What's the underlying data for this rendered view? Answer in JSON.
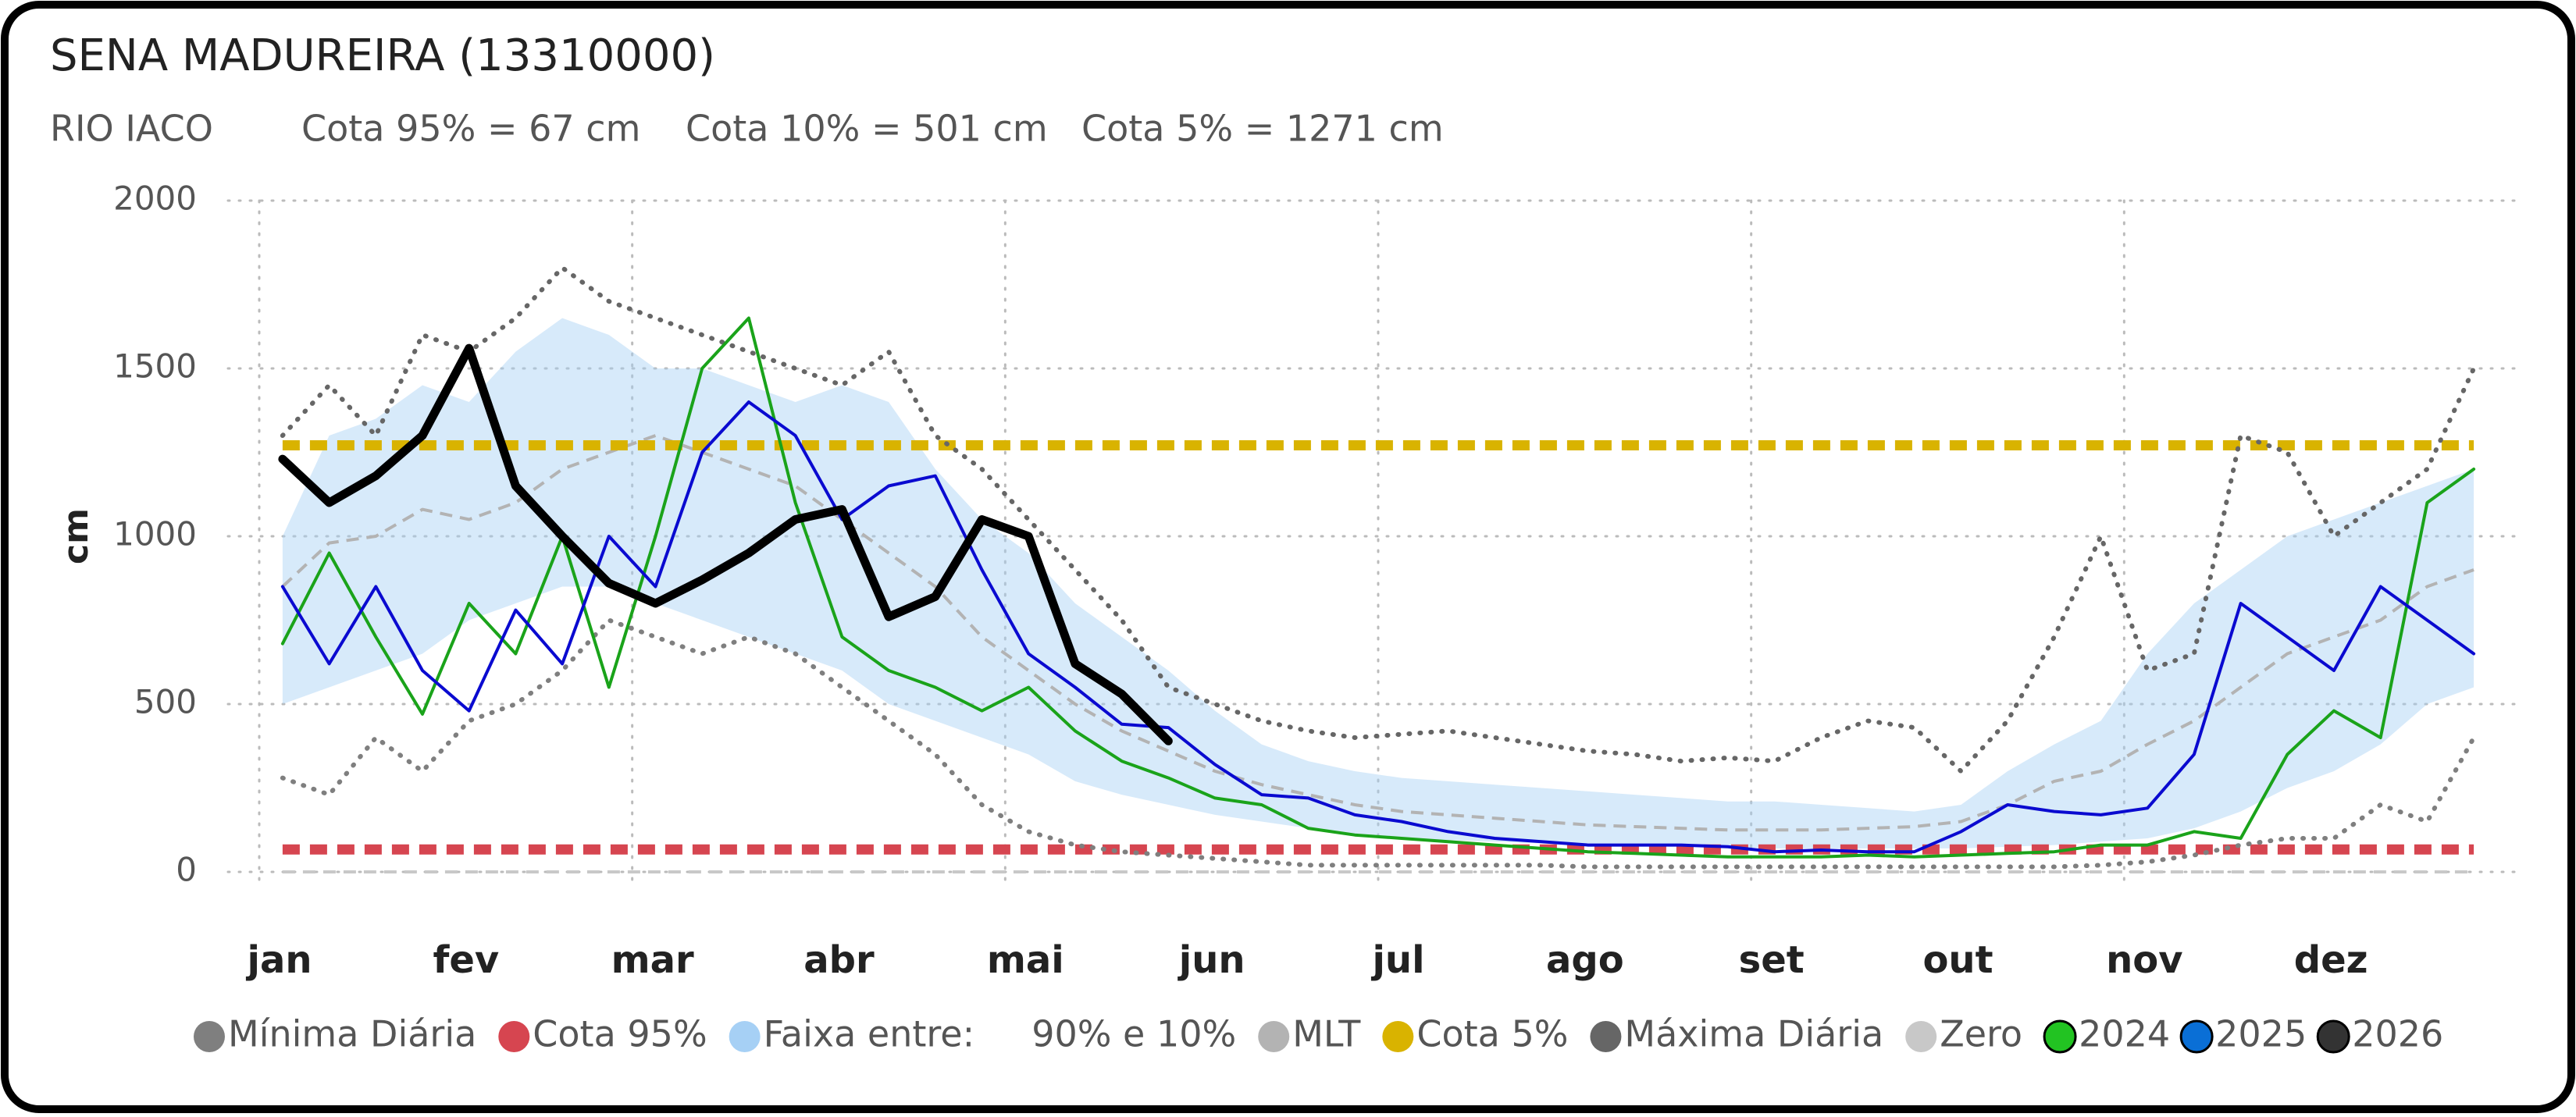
{
  "chart_data": {
    "type": "line",
    "title": "SENA MADUREIRA (13310000)",
    "subtitle": [
      "RIO IACO",
      "Cota 95% = 67 cm",
      "Cota 10% = 501 cm",
      "Cota 5% = 1271 cm"
    ],
    "y_label": "cm",
    "ylim": [
      0,
      2000
    ],
    "yticks": [
      0,
      500,
      1000,
      1500,
      2000
    ],
    "grid": true,
    "categories": [
      "jan",
      null,
      null,
      null,
      "fev",
      null,
      null,
      null,
      "mar",
      null,
      null,
      null,
      "abr",
      null,
      null,
      null,
      "mai",
      null,
      null,
      null,
      "jun",
      null,
      null,
      null,
      "jul",
      null,
      null,
      null,
      "ago",
      null,
      null,
      null,
      "set",
      null,
      null,
      null,
      "out",
      null,
      null,
      null,
      "nov",
      null,
      null,
      null,
      "dez",
      null,
      null,
      null
    ],
    "series": [
      {
        "name": "Mínima Diária",
        "color": "#7f7f7f",
        "line_style": "dotted",
        "values": [
          280,
          230,
          400,
          300,
          450,
          500,
          600,
          750,
          700,
          650,
          700,
          650,
          550,
          450,
          350,
          200,
          120,
          80,
          60,
          50,
          40,
          30,
          20,
          20,
          20,
          20,
          20,
          20,
          15,
          15,
          15,
          15,
          15,
          15,
          15,
          15,
          15,
          15,
          15,
          20,
          30,
          50,
          80,
          100,
          100,
          200,
          150,
          400
        ]
      },
      {
        "name": "Cota 95%",
        "color": "#d64550",
        "line_style": "heavy-dashed",
        "values": [
          67,
          67,
          67,
          67,
          67,
          67,
          67,
          67,
          67,
          67,
          67,
          67,
          67,
          67,
          67,
          67,
          67,
          67,
          67,
          67,
          67,
          67,
          67,
          67,
          67,
          67,
          67,
          67,
          67,
          67,
          67,
          67,
          67,
          67,
          67,
          67,
          67,
          67,
          67,
          67,
          67,
          67,
          67,
          67,
          67,
          67,
          67,
          67
        ]
      },
      {
        "name": "Faixa entre:     90% e 10%",
        "color": "#a6d0f5",
        "line_style": "band",
        "high": [
          1000,
          1300,
          1350,
          1450,
          1400,
          1550,
          1650,
          1600,
          1500,
          1500,
          1450,
          1400,
          1450,
          1400,
          1200,
          1050,
          950,
          800,
          700,
          600,
          480,
          380,
          330,
          300,
          280,
          270,
          260,
          250,
          240,
          230,
          220,
          210,
          210,
          200,
          190,
          180,
          200,
          300,
          380,
          450,
          650,
          800,
          900,
          1000,
          1050,
          1100,
          1150,
          1200
        ],
        "low": [
          500,
          550,
          600,
          650,
          750,
          800,
          850,
          850,
          800,
          750,
          700,
          650,
          600,
          500,
          450,
          400,
          350,
          270,
          230,
          200,
          170,
          150,
          130,
          110,
          100,
          95,
          90,
          85,
          80,
          80,
          75,
          75,
          70,
          70,
          70,
          70,
          70,
          75,
          80,
          90,
          100,
          130,
          180,
          250,
          300,
          380,
          500,
          550
        ]
      },
      {
        "name": "MLT",
        "color": "#b3b3b3",
        "line_style": "dashed",
        "values": [
          850,
          980,
          1000,
          1080,
          1050,
          1100,
          1200,
          1250,
          1300,
          1250,
          1200,
          1150,
          1050,
          950,
          850,
          700,
          600,
          500,
          420,
          360,
          300,
          260,
          230,
          200,
          180,
          170,
          160,
          150,
          140,
          135,
          130,
          125,
          125,
          125,
          130,
          135,
          150,
          200,
          270,
          300,
          380,
          450,
          550,
          650,
          700,
          750,
          850,
          900
        ]
      },
      {
        "name": "Cota 5%",
        "color": "#d9b300",
        "line_style": "heavy-dashed",
        "values": [
          1271,
          1271,
          1271,
          1271,
          1271,
          1271,
          1271,
          1271,
          1271,
          1271,
          1271,
          1271,
          1271,
          1271,
          1271,
          1271,
          1271,
          1271,
          1271,
          1271,
          1271,
          1271,
          1271,
          1271,
          1271,
          1271,
          1271,
          1271,
          1271,
          1271,
          1271,
          1271,
          1271,
          1271,
          1271,
          1271,
          1271,
          1271,
          1271,
          1271,
          1271,
          1271,
          1271,
          1271,
          1271,
          1271,
          1271,
          1271
        ]
      },
      {
        "name": "Máxima Diária",
        "color": "#666666",
        "line_style": "dotted",
        "values": [
          1300,
          1450,
          1300,
          1600,
          1550,
          1650,
          1800,
          1700,
          1650,
          1600,
          1550,
          1500,
          1450,
          1550,
          1300,
          1200,
          1050,
          900,
          750,
          550,
          500,
          450,
          420,
          400,
          410,
          420,
          400,
          380,
          360,
          350,
          330,
          340,
          330,
          400,
          450,
          430,
          300,
          450,
          700,
          1000,
          600,
          650,
          1300,
          1250,
          1000,
          1100,
          1200,
          1500
        ]
      },
      {
        "name": "Zero",
        "color": "#c8c8c8",
        "line_style": "dashed",
        "values": [
          0,
          0,
          0,
          0,
          0,
          0,
          0,
          0,
          0,
          0,
          0,
          0,
          0,
          0,
          0,
          0,
          0,
          0,
          0,
          0,
          0,
          0,
          0,
          0,
          0,
          0,
          0,
          0,
          0,
          0,
          0,
          0,
          0,
          0,
          0,
          0,
          0,
          0,
          0,
          0,
          0,
          0,
          0,
          0,
          0,
          0,
          0,
          0
        ]
      },
      {
        "name": "2024",
        "color": "#1aa31a",
        "line_style": "solid",
        "values": [
          680,
          950,
          700,
          470,
          800,
          650,
          1000,
          550,
          1000,
          1500,
          1650,
          1100,
          700,
          600,
          550,
          480,
          550,
          420,
          330,
          280,
          220,
          200,
          130,
          110,
          100,
          90,
          80,
          70,
          60,
          55,
          50,
          45,
          45,
          45,
          50,
          45,
          50,
          55,
          60,
          80,
          80,
          120,
          100,
          350,
          480,
          400,
          1100,
          1200
        ]
      },
      {
        "name": "2025",
        "color": "#0a0ad0",
        "line_style": "solid",
        "values": [
          850,
          620,
          850,
          600,
          480,
          780,
          620,
          1000,
          850,
          1250,
          1400,
          1300,
          1050,
          1150,
          1180,
          900,
          650,
          550,
          440,
          430,
          320,
          230,
          220,
          170,
          150,
          120,
          100,
          90,
          80,
          80,
          80,
          75,
          60,
          65,
          60,
          60,
          120,
          200,
          180,
          170,
          190,
          350,
          800,
          700,
          600,
          850,
          750,
          650
        ]
      },
      {
        "name": "2026",
        "color": "#000000",
        "line_style": "thick",
        "values": [
          1230,
          1100,
          1180,
          1300,
          1560,
          1150,
          1000,
          860,
          800,
          870,
          950,
          1050,
          1080,
          760,
          820,
          1050,
          1000,
          620,
          530,
          390,
          null,
          null,
          null,
          null,
          null,
          null,
          null,
          null,
          null,
          null,
          null,
          null,
          null,
          null,
          null,
          null,
          null,
          null,
          null,
          null,
          null,
          null,
          null,
          null,
          null,
          null,
          null,
          null
        ]
      }
    ]
  }
}
